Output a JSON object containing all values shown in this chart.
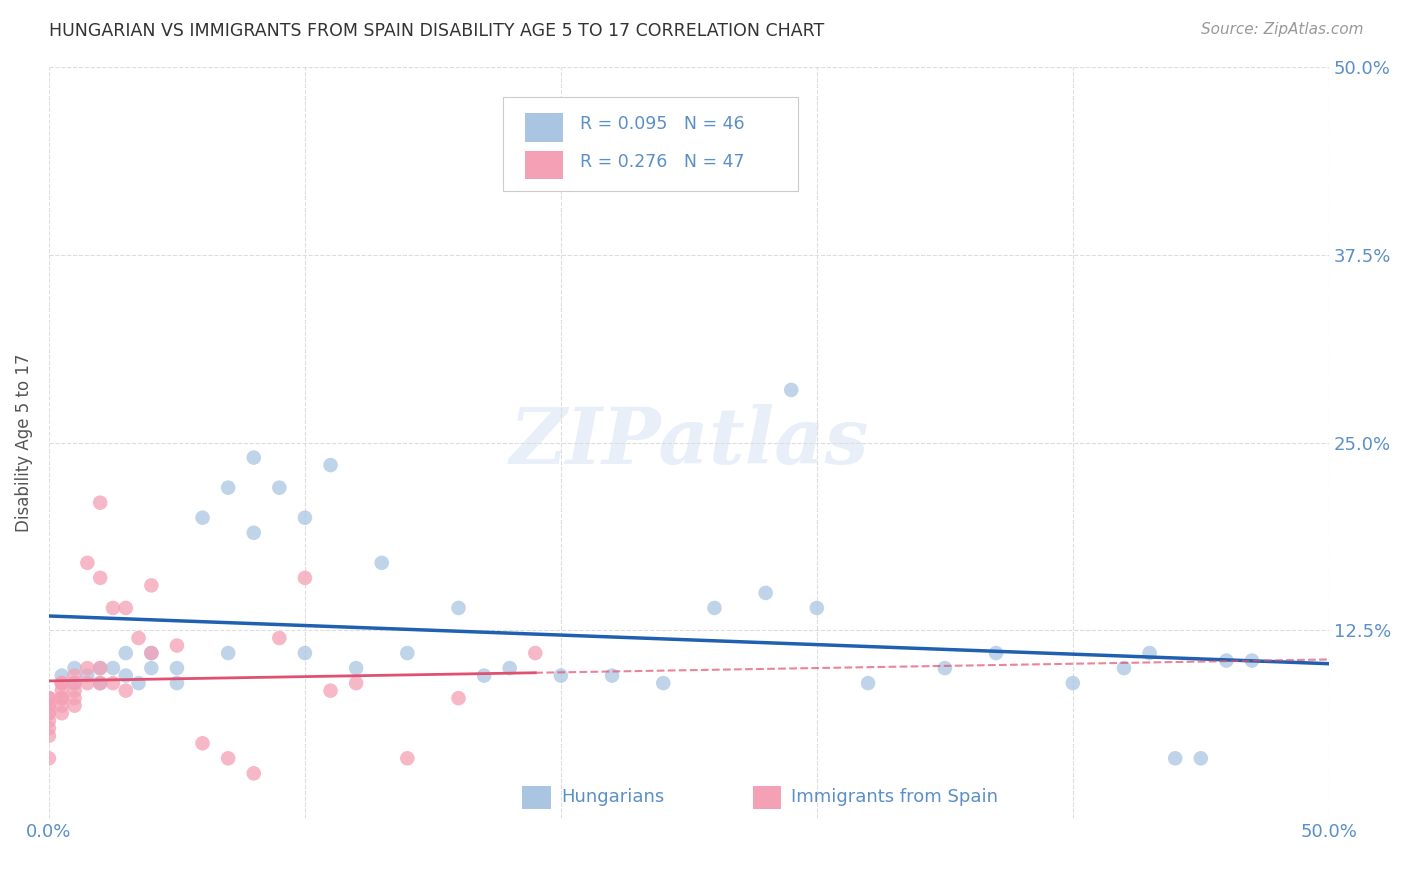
{
  "title": "HUNGARIAN VS IMMIGRANTS FROM SPAIN DISABILITY AGE 5 TO 17 CORRELATION CHART",
  "source": "Source: ZipAtlas.com",
  "ylabel": "Disability Age 5 to 17",
  "xlim": [
    0.0,
    0.5
  ],
  "ylim": [
    0.0,
    0.5
  ],
  "xticks": [
    0.0,
    0.1,
    0.2,
    0.3,
    0.4,
    0.5
  ],
  "yticks": [
    0.0,
    0.125,
    0.25,
    0.375,
    0.5
  ],
  "xticklabels": [
    "0.0%",
    "",
    "",
    "",
    "",
    "50.0%"
  ],
  "yticklabels_right": [
    "",
    "12.5%",
    "25.0%",
    "37.5%",
    "50.0%"
  ],
  "grid_color": "#dddddd",
  "background_color": "#ffffff",
  "watermark": "ZIPatlas",
  "legend_R1": "R = 0.095",
  "legend_N1": "N = 46",
  "legend_R2": "R = 0.276",
  "legend_N2": "N = 47",
  "legend_label1": "Hungarians",
  "legend_label2": "Immigrants from Spain",
  "blue_color": "#aac5e2",
  "pink_color": "#f4a0b5",
  "line_blue": "#2060b0",
  "line_pink": "#e05070",
  "axis_label_color": "#5a8fc8",
  "title_color": "#333333",
  "source_color": "#999999",
  "ylabel_color": "#555555",
  "blue_scatter_x": [
    0.005,
    0.01,
    0.01,
    0.015,
    0.02,
    0.02,
    0.025,
    0.03,
    0.03,
    0.035,
    0.04,
    0.04,
    0.05,
    0.05,
    0.06,
    0.07,
    0.07,
    0.08,
    0.08,
    0.09,
    0.1,
    0.1,
    0.11,
    0.12,
    0.13,
    0.14,
    0.16,
    0.17,
    0.18,
    0.2,
    0.22,
    0.24,
    0.26,
    0.28,
    0.29,
    0.3,
    0.32,
    0.35,
    0.37,
    0.4,
    0.42,
    0.43,
    0.44,
    0.45,
    0.46,
    0.47
  ],
  "blue_scatter_y": [
    0.095,
    0.1,
    0.09,
    0.095,
    0.1,
    0.09,
    0.1,
    0.11,
    0.095,
    0.09,
    0.1,
    0.11,
    0.1,
    0.09,
    0.2,
    0.22,
    0.11,
    0.24,
    0.19,
    0.22,
    0.2,
    0.11,
    0.235,
    0.1,
    0.17,
    0.11,
    0.14,
    0.095,
    0.1,
    0.095,
    0.095,
    0.09,
    0.14,
    0.15,
    0.285,
    0.14,
    0.09,
    0.1,
    0.11,
    0.09,
    0.1,
    0.11,
    0.04,
    0.04,
    0.105,
    0.105
  ],
  "pink_scatter_x": [
    0.0,
    0.0,
    0.0,
    0.0,
    0.0,
    0.0,
    0.0,
    0.0,
    0.0,
    0.0,
    0.005,
    0.005,
    0.005,
    0.005,
    0.005,
    0.005,
    0.005,
    0.01,
    0.01,
    0.01,
    0.01,
    0.01,
    0.015,
    0.015,
    0.015,
    0.02,
    0.02,
    0.02,
    0.02,
    0.025,
    0.025,
    0.03,
    0.03,
    0.035,
    0.04,
    0.04,
    0.05,
    0.06,
    0.07,
    0.08,
    0.09,
    0.1,
    0.11,
    0.12,
    0.14,
    0.16,
    0.19
  ],
  "pink_scatter_y": [
    0.08,
    0.08,
    0.07,
    0.075,
    0.075,
    0.07,
    0.065,
    0.06,
    0.055,
    0.04,
    0.09,
    0.09,
    0.085,
    0.08,
    0.08,
    0.075,
    0.07,
    0.095,
    0.09,
    0.085,
    0.08,
    0.075,
    0.17,
    0.1,
    0.09,
    0.21,
    0.16,
    0.1,
    0.09,
    0.14,
    0.09,
    0.14,
    0.085,
    0.12,
    0.155,
    0.11,
    0.115,
    0.05,
    0.04,
    0.03,
    0.12,
    0.16,
    0.085,
    0.09,
    0.04,
    0.08,
    0.11
  ]
}
